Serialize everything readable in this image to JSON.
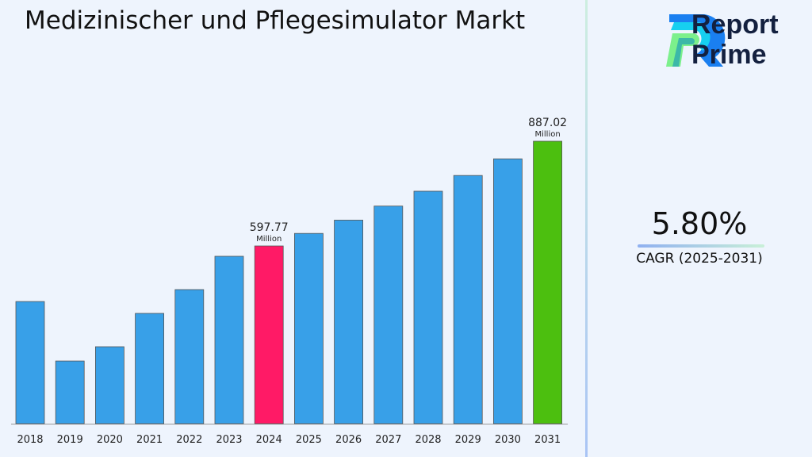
{
  "title": "Medizinischer und Pflegesimulator Markt",
  "brand": {
    "line1": "Report",
    "line2": "Prime"
  },
  "cagr": {
    "value": "5.80%",
    "label": "CAGR (2025-2031)"
  },
  "colors": {
    "default": "#38a0e8",
    "highlight": "#ff1a66",
    "final": "#4cbf0f",
    "background": "#eef4fd"
  },
  "chart_data": {
    "type": "bar",
    "title": "Medizinischer und Pflegesimulator Markt",
    "unit": "Million",
    "categories": [
      "2018",
      "2019",
      "2020",
      "2021",
      "2022",
      "2023",
      "2024",
      "2025",
      "2026",
      "2027",
      "2028",
      "2029",
      "2030",
      "2031"
    ],
    "values": [
      444.4,
      280.0,
      319.5,
      411.6,
      477.3,
      569.3,
      597.77,
      632.44,
      669.12,
      707.93,
      749.0,
      792.44,
      838.4,
      887.02
    ],
    "highlight": {
      "2024": "#ff1a66",
      "2031": "#4cbf0f"
    },
    "data_labels": [
      {
        "category": "2024",
        "value": "597.77",
        "unit": "Million"
      },
      {
        "category": "2031",
        "value": "887.02",
        "unit": "Million"
      }
    ],
    "grid": false
  }
}
